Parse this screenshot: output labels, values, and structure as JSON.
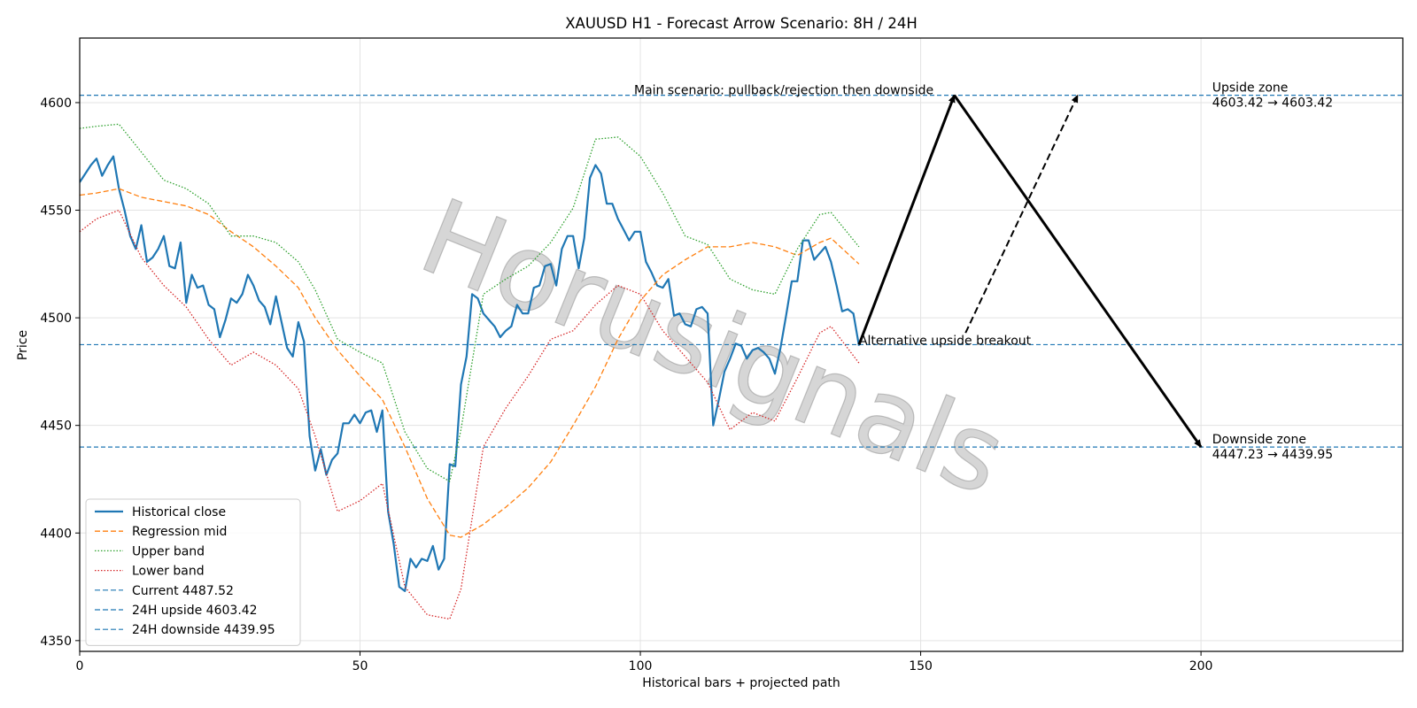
{
  "chart_data": {
    "type": "line",
    "title": "XAUUSD H1 - Forecast Arrow Scenario: 8H / 24H",
    "xlabel": "Historical bars + projected path",
    "ylabel": "Price",
    "xlim": [
      0,
      236
    ],
    "ylim": [
      4345,
      4630
    ],
    "x_ticks": [
      0,
      50,
      100,
      150,
      200
    ],
    "y_ticks": [
      4350,
      4400,
      4450,
      4500,
      4550,
      4600
    ],
    "grid": true,
    "legend_position": "lower-left",
    "watermark": "Horusignals",
    "series": [
      {
        "name": "Historical close",
        "style": "solid",
        "color": "#1f77b4",
        "x": [
          0,
          2,
          3,
          4,
          5,
          6,
          7,
          8,
          9,
          10,
          11,
          12,
          13,
          14,
          15,
          16,
          17,
          18,
          19,
          20,
          21,
          22,
          23,
          24,
          25,
          26,
          27,
          28,
          29,
          30,
          31,
          32,
          33,
          34,
          35,
          36,
          37,
          38,
          39,
          40,
          41,
          42,
          43,
          44,
          45,
          46,
          47,
          48,
          49,
          50,
          51,
          52,
          53,
          54,
          55,
          56,
          57,
          58,
          59,
          60,
          61,
          62,
          63,
          64,
          65,
          66,
          67,
          68,
          69,
          70,
          71,
          72,
          73,
          74,
          75,
          76,
          77,
          78,
          79,
          80,
          81,
          82,
          83,
          84,
          85,
          86,
          87,
          88,
          89,
          90,
          91,
          92,
          93,
          94,
          95,
          96,
          97,
          98,
          99,
          100,
          101,
          102,
          103,
          104,
          105,
          106,
          107,
          108,
          109,
          110,
          111,
          112,
          113,
          114,
          115,
          116,
          117,
          118,
          119,
          120,
          121,
          122,
          123,
          124,
          125,
          126,
          127,
          128,
          129,
          130,
          131,
          132,
          133,
          134,
          135,
          136,
          137,
          138,
          139
        ],
        "values": [
          4563,
          4571,
          4574,
          4566,
          4571,
          4575,
          4560,
          4550,
          4538,
          4532,
          4543,
          4526,
          4528,
          4532,
          4538,
          4524,
          4523,
          4535,
          4507,
          4520,
          4514,
          4515,
          4506,
          4504,
          4491,
          4499,
          4509,
          4507,
          4511,
          4520,
          4515,
          4508,
          4505,
          4497,
          4510,
          4498,
          4486,
          4482,
          4498,
          4489,
          4445,
          4429,
          4439,
          4427,
          4434,
          4437,
          4451,
          4451,
          4455,
          4451,
          4456,
          4457,
          4447,
          4457,
          4410,
          4395,
          4375,
          4373,
          4388,
          4384,
          4388,
          4387,
          4394,
          4383,
          4388,
          4432,
          4431,
          4469,
          4482,
          4511,
          4509,
          4502,
          4499,
          4496,
          4491,
          4494,
          4496,
          4506,
          4502,
          4502,
          4514,
          4515,
          4524,
          4525,
          4515,
          4532,
          4538,
          4538,
          4523,
          4537,
          4565,
          4571,
          4567,
          4553,
          4553,
          4546,
          4541,
          4536,
          4540,
          4540,
          4526,
          4521,
          4515,
          4514,
          4518,
          4501,
          4502,
          4497,
          4496,
          4504,
          4505,
          4502,
          4450,
          4462,
          4475,
          4481,
          4488,
          4487,
          4481,
          4485,
          4486,
          4484,
          4481,
          4474,
          4486,
          4501,
          4517,
          4517,
          4536,
          4536,
          4527,
          4530,
          4533,
          4526,
          4515,
          4503,
          4504,
          4502,
          4487
        ]
      },
      {
        "name": "Regression mid",
        "style": "dashed",
        "color": "#ff7f0e",
        "x": [
          0,
          3,
          7,
          11,
          15,
          19,
          23,
          27,
          31,
          35,
          39,
          42,
          46,
          50,
          54,
          58,
          62,
          66,
          68,
          72,
          76,
          80,
          84,
          88,
          92,
          96,
          100,
          104,
          108,
          112,
          116,
          120,
          124,
          128,
          132,
          134,
          139
        ],
        "values": [
          4557,
          4558,
          4560,
          4556,
          4554,
          4552,
          4548,
          4540,
          4533,
          4524,
          4514,
          4500,
          4485,
          4473,
          4462,
          4440,
          4416,
          4399,
          4398,
          4404,
          4412,
          4421,
          4433,
          4450,
          4468,
          4490,
          4508,
          4520,
          4527,
          4533,
          4533,
          4535,
          4533,
          4529,
          4535,
          4537,
          4525
        ]
      },
      {
        "name": "Upper band",
        "style": "dotted",
        "color": "#2ca02c",
        "x": [
          0,
          3,
          7,
          11,
          15,
          19,
          23,
          27,
          31,
          35,
          39,
          42,
          46,
          50,
          54,
          58,
          62,
          66,
          68,
          72,
          76,
          80,
          84,
          88,
          92,
          96,
          100,
          104,
          108,
          112,
          116,
          120,
          124,
          128,
          132,
          134,
          139
        ],
        "values": [
          4588,
          4589,
          4590,
          4577,
          4564,
          4560,
          4553,
          4538,
          4538,
          4535,
          4526,
          4513,
          4490,
          4484,
          4479,
          4447,
          4430,
          4424,
          4448,
          4511,
          4518,
          4524,
          4535,
          4551,
          4583,
          4584,
          4575,
          4558,
          4538,
          4534,
          4518,
          4513,
          4511,
          4532,
          4548,
          4549,
          4533
        ]
      },
      {
        "name": "Lower band",
        "style": "dotted",
        "color": "#d62728",
        "x": [
          0,
          3,
          7,
          11,
          15,
          19,
          23,
          27,
          31,
          35,
          39,
          42,
          46,
          50,
          54,
          58,
          62,
          66,
          68,
          72,
          76,
          80,
          84,
          88,
          92,
          96,
          100,
          104,
          108,
          112,
          116,
          120,
          124,
          128,
          132,
          134,
          139
        ],
        "values": [
          4540,
          4546,
          4550,
          4528,
          4515,
          4505,
          4490,
          4478,
          4484,
          4478,
          4467,
          4445,
          4410,
          4415,
          4423,
          4375,
          4362,
          4360,
          4374,
          4440,
          4458,
          4473,
          4490,
          4494,
          4506,
          4515,
          4511,
          4494,
          4482,
          4470,
          4448,
          4456,
          4452,
          4472,
          4493,
          4496,
          4479
        ]
      }
    ],
    "reference_lines": [
      {
        "name": "Current 4487.52",
        "y": 4487.52,
        "color": "#1f77b4"
      },
      {
        "name": "24H upside 4603.42",
        "y": 4603.42,
        "color": "#1f77b4"
      },
      {
        "name": "24H downside 4439.95",
        "y": 4439.95,
        "color": "#1f77b4"
      }
    ],
    "arrows": [
      {
        "label": "Main scenario: pullback/rejection then downside",
        "style": "solid",
        "color": "#000000",
        "path": [
          [
            139,
            4487.52
          ],
          [
            156,
            4603.42
          ],
          [
            200,
            4439.95
          ]
        ]
      },
      {
        "label": "Alternative upside breakout",
        "style": "dashed",
        "color": "#000000",
        "path": [
          [
            158,
            4493
          ],
          [
            178,
            4603.42
          ]
        ]
      }
    ],
    "zone_annotations": [
      {
        "title": "Upside zone",
        "range": "4603.42 → 4603.42",
        "x": 202,
        "y": 4603.42
      },
      {
        "title": "Downside zone",
        "range": "4447.23 → 4439.95",
        "x": 202,
        "y": 4439.95
      }
    ]
  }
}
